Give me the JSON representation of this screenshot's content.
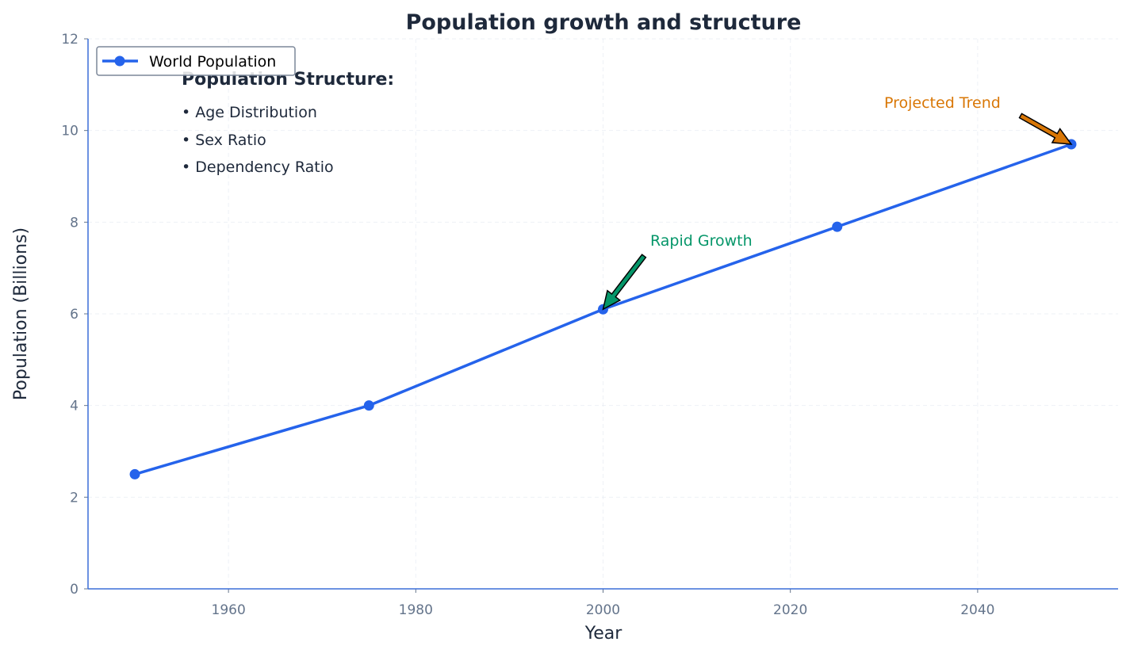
{
  "chart_data": {
    "type": "line",
    "title": "Population growth and structure",
    "xlabel": "Year",
    "ylabel": "Population (Billions)",
    "xlim": [
      1945,
      2055
    ],
    "ylim": [
      0,
      12
    ],
    "xticks": [
      1960,
      1980,
      2000,
      2020,
      2040
    ],
    "yticks": [
      0,
      2,
      4,
      6,
      8,
      10,
      12
    ],
    "grid": true,
    "legend_position": "top-left",
    "series": [
      {
        "name": "World Population",
        "color": "#2563eb",
        "x": [
          1950,
          1975,
          2000,
          2025,
          2050
        ],
        "y": [
          2.5,
          4.0,
          6.1,
          7.9,
          9.7
        ]
      }
    ],
    "annotations": [
      {
        "text": "Rapid Growth",
        "xy": [
          2000,
          6.1
        ],
        "color": "#059669"
      },
      {
        "text": "Projected Trend",
        "xy": [
          2050,
          9.7
        ],
        "color": "#d97706"
      }
    ],
    "textbox": {
      "heading": "Population Structure:",
      "items": [
        "• Age Distribution",
        "• Sex Ratio",
        "• Dependency Ratio"
      ]
    }
  }
}
